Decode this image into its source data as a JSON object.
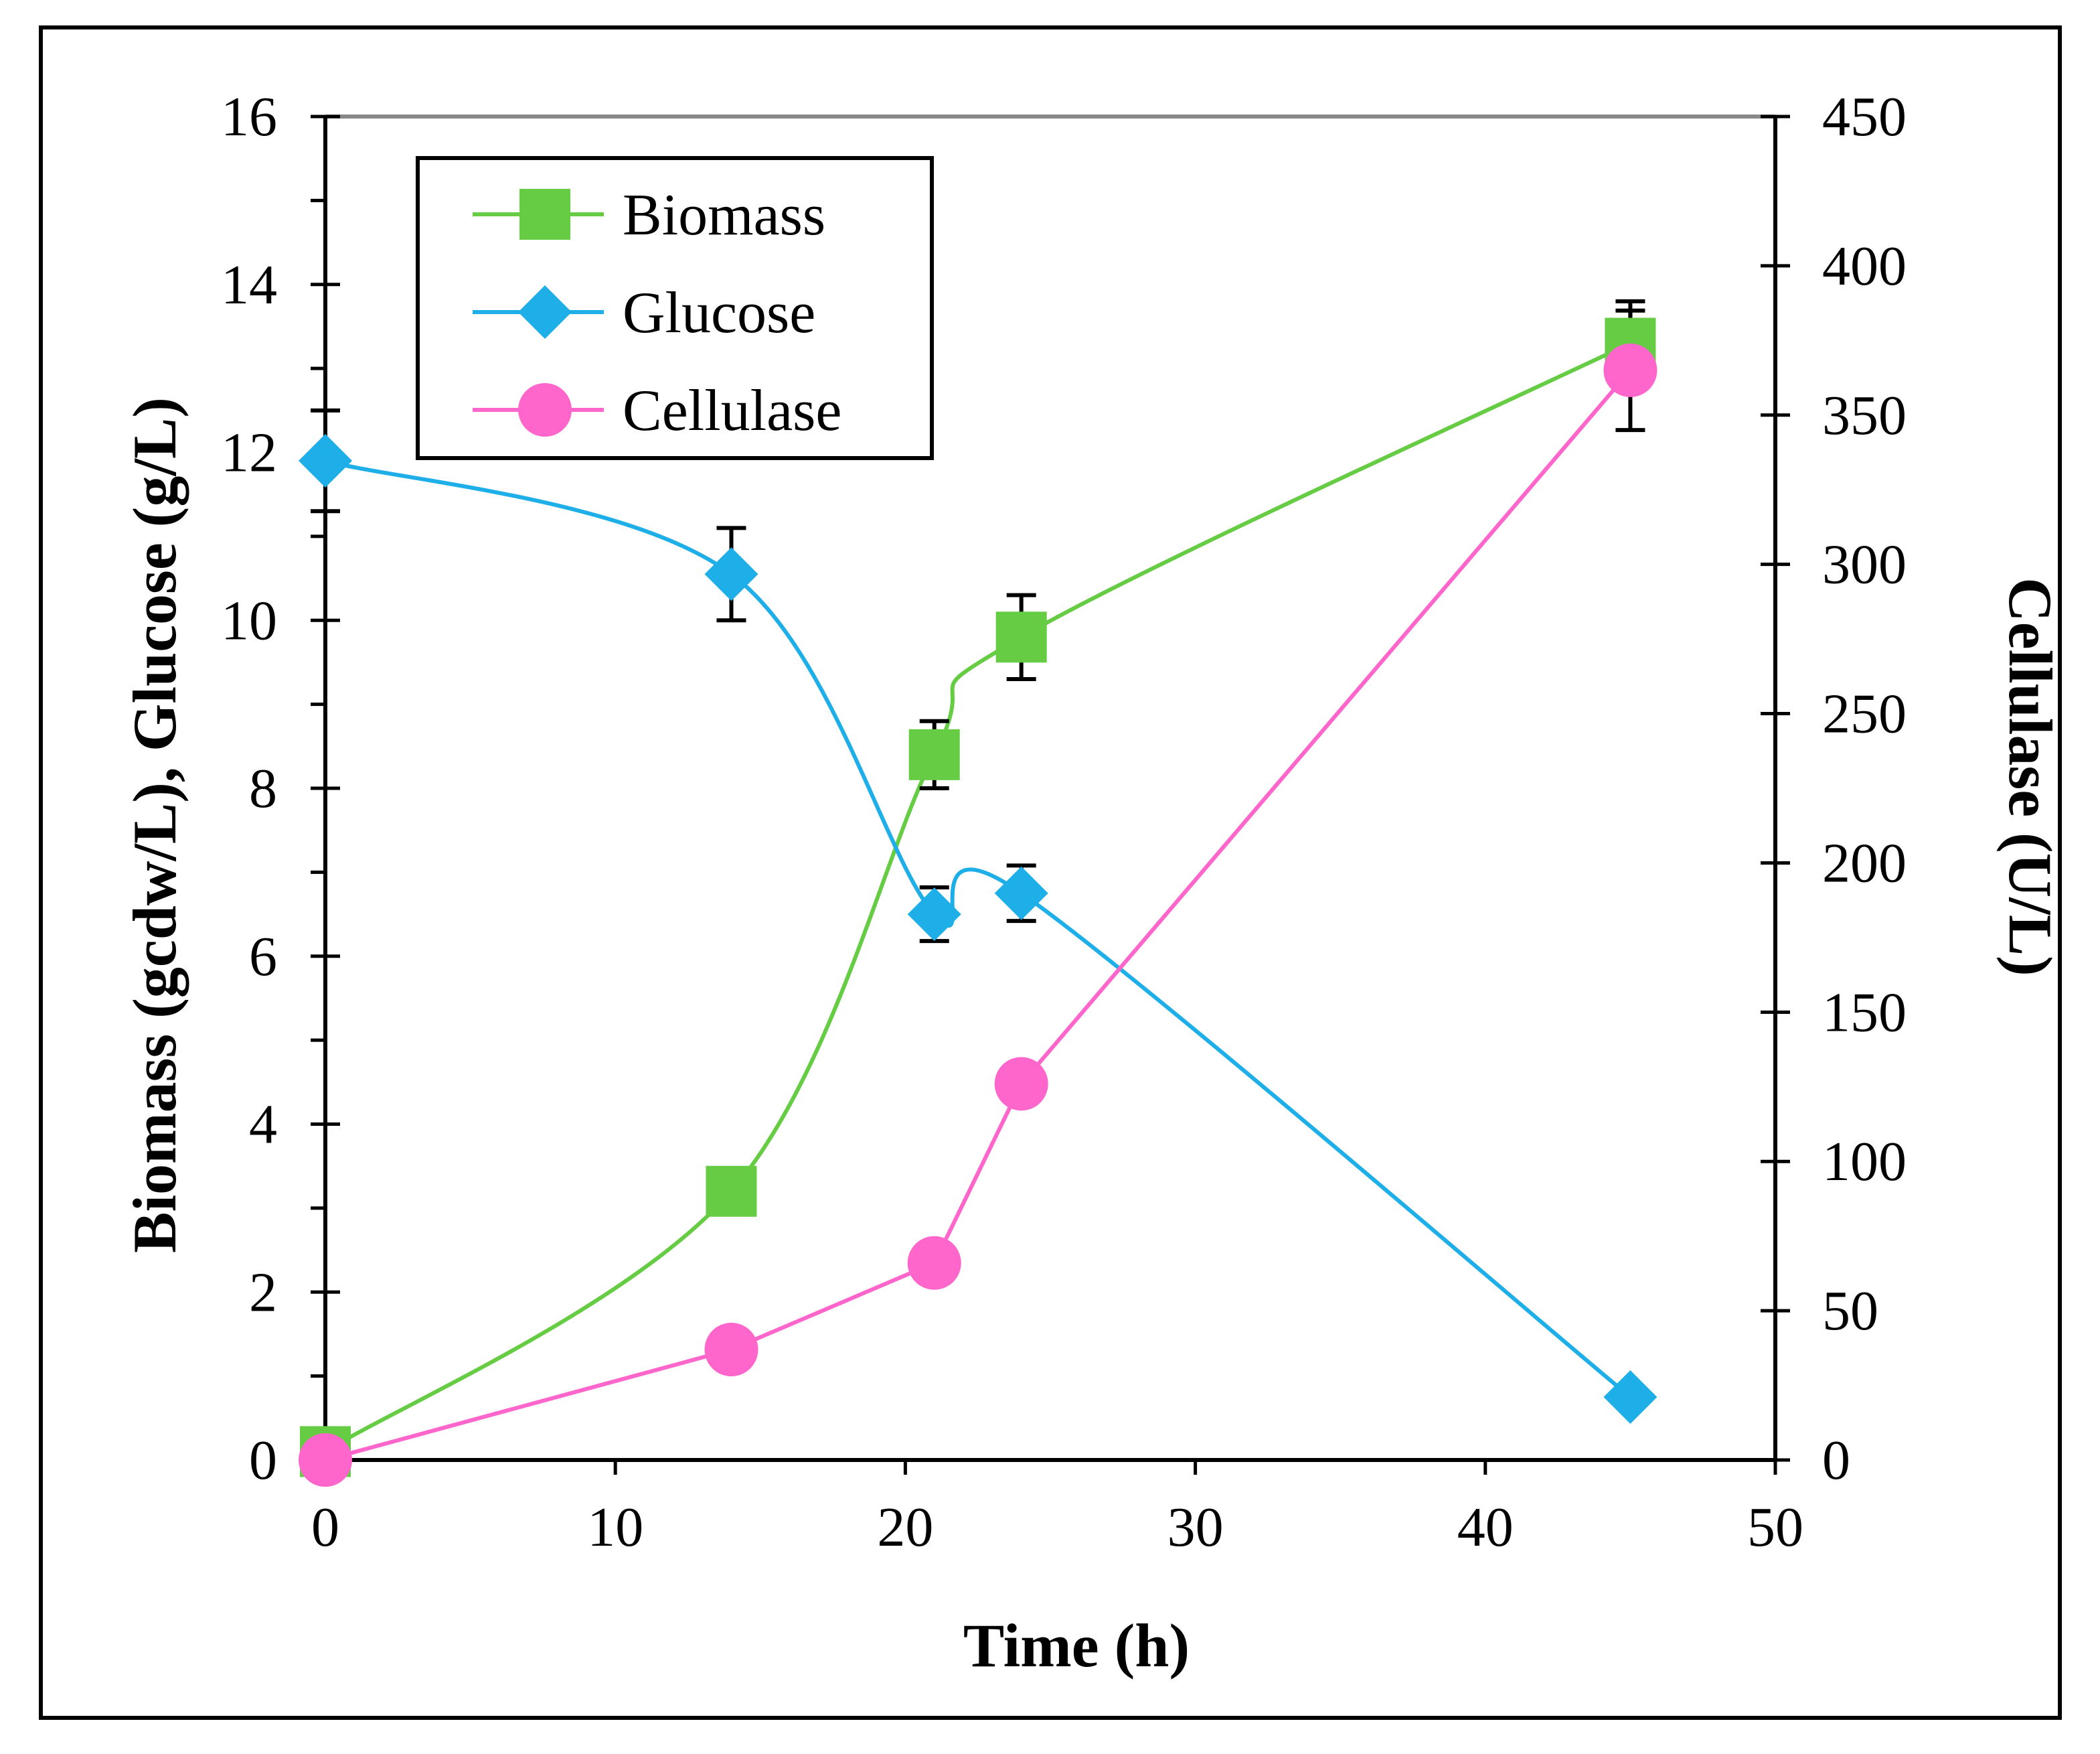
{
  "chart_data": {
    "type": "line",
    "xlabel": "Time (h)",
    "ylabel": "Biomass (gcdw/L),  Glucose (g/L)",
    "y2label": "Cellulase (U/L)",
    "xlim": [
      0,
      50
    ],
    "ylim": [
      0,
      16
    ],
    "y2lim": [
      0,
      450
    ],
    "xticks": [
      0,
      10,
      20,
      30,
      40,
      50
    ],
    "yticks": [
      0,
      2,
      4,
      6,
      8,
      10,
      12,
      14,
      16
    ],
    "y2ticks": [
      0,
      50,
      100,
      150,
      200,
      250,
      300,
      350,
      400,
      450
    ],
    "grid": false,
    "legend_position": "top-left",
    "series": [
      {
        "name": "Biomass",
        "axis": "left",
        "marker": "square",
        "color": "#66CC44",
        "x": [
          0,
          14,
          21,
          24,
          45
        ],
        "y": [
          0.1,
          3.2,
          8.4,
          9.8,
          13.3
        ],
        "error": [
          0,
          0,
          0.4,
          0.5,
          0.5
        ]
      },
      {
        "name": "Glucose",
        "axis": "left",
        "marker": "diamond",
        "color": "#1EAEE8",
        "x": [
          0,
          14,
          21,
          24,
          45
        ],
        "y": [
          11.9,
          10.55,
          6.5,
          6.75,
          0.75
        ],
        "error": [
          0.6,
          0.55,
          0.32,
          0.33,
          0
        ]
      },
      {
        "name": "Cellulase",
        "axis": "right",
        "marker": "circle",
        "color": "#FF66CC",
        "x": [
          0,
          14,
          21,
          24,
          45
        ],
        "y": [
          0,
          37,
          66,
          126,
          365
        ],
        "error": [
          0,
          0,
          0,
          0,
          20
        ]
      }
    ]
  }
}
